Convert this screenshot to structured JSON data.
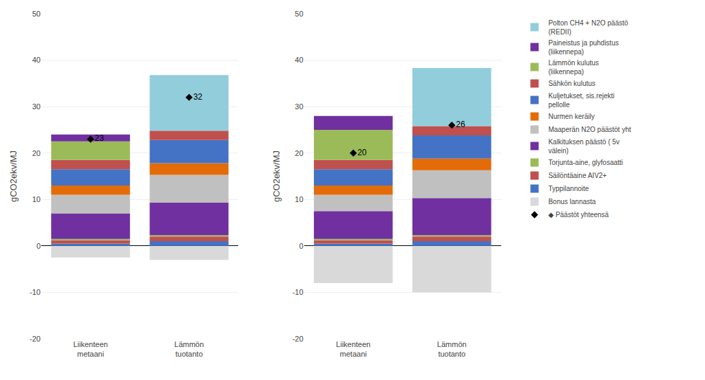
{
  "chart_data": [
    {
      "type": "bar",
      "stacked": true,
      "grid": true,
      "legend": "right",
      "categories": [
        "Liikenteen\nmetaani",
        "Lämmön\ntuotanto"
      ],
      "ylabel": "gCO2ekv/MJ",
      "ylim": [
        -20,
        50
      ],
      "yticks": [
        -20,
        -10,
        0,
        10,
        20,
        30,
        40,
        50
      ],
      "series": [
        {
          "name": "Bonus lannasta",
          "color": "#d9d9d9",
          "values": [
            -2.5,
            -3.0
          ]
        },
        {
          "name": "Typpilannoite",
          "color": "#4472c4",
          "values": [
            0.5,
            1.0
          ]
        },
        {
          "name": "Säilöntäaine AIV2+",
          "color": "#c0504d",
          "values": [
            0.7,
            1.0
          ]
        },
        {
          "name": "Torjunta-aine, glyfosaatti",
          "color": "#9bbb59",
          "values": [
            0.3,
            0.3
          ]
        },
        {
          "name": "Kalkituksen päästö ( 5v\nvälein)",
          "color": "#7030a0",
          "values": [
            5.5,
            7.0
          ]
        },
        {
          "name": "Maaperän N2O päästöt yht",
          "color": "#c0c0c0",
          "values": [
            4.0,
            6.0
          ]
        },
        {
          "name": "Nurmen keräily",
          "color": "#e36c09",
          "values": [
            2.0,
            2.5
          ]
        },
        {
          "name": "Kuljetukset, sis.rejekti\npellolle",
          "color": "#4472c4",
          "values": [
            3.5,
            5.0
          ]
        },
        {
          "name": "Sähkön kulutus",
          "color": "#c0504d",
          "values": [
            2.0,
            2.0
          ]
        },
        {
          "name": "Lämmön kulutus\n(liikennepa)",
          "color": "#9bbb59",
          "values": [
            4.0,
            0.0
          ]
        },
        {
          "name": "Paineistus ja puhdistus\n(liikennepa)",
          "color": "#7030a0",
          "values": [
            1.5,
            0.0
          ]
        },
        {
          "name": "Polton CH4 + N2O päästö\n(REDII)",
          "color": "#92cddc",
          "values": [
            0.0,
            12.0
          ]
        },
        {
          "name": "◆ Päästöt yhteensä",
          "type": "scatter",
          "marker": "diamond",
          "color": "black",
          "data_labels": true,
          "values": [
            23,
            32
          ]
        }
      ]
    },
    {
      "type": "bar",
      "stacked": true,
      "grid": true,
      "categories": [
        "Liikenteen\nmetaani",
        "Lämmön\ntuotanto"
      ],
      "ylabel": "gCO2ekv/MJ",
      "ylim": [
        -20,
        50
      ],
      "yticks": [
        -20,
        -10,
        0,
        10,
        20,
        30,
        40,
        50
      ],
      "series": [
        {
          "name": "Bonus lannasta",
          "color": "#d9d9d9",
          "values": [
            -8.0,
            -10.0
          ]
        },
        {
          "name": "Typpilannoite",
          "color": "#4472c4",
          "values": [
            0.5,
            1.0
          ]
        },
        {
          "name": "Säilöntäaine AIV2+",
          "color": "#c0504d",
          "values": [
            0.7,
            1.0
          ]
        },
        {
          "name": "Torjunta-aine, glyfosaatti",
          "color": "#9bbb59",
          "values": [
            0.3,
            0.3
          ]
        },
        {
          "name": "Kalkituksen päästö ( 5v\nvälein)",
          "color": "#7030a0",
          "values": [
            6.0,
            8.0
          ]
        },
        {
          "name": "Maaperän N2O päästöt yht",
          "color": "#c0c0c0",
          "values": [
            3.5,
            6.0
          ]
        },
        {
          "name": "Nurmen keräily",
          "color": "#e36c09",
          "values": [
            2.0,
            2.5
          ]
        },
        {
          "name": "Kuljetukset, sis.rejekti\npellolle",
          "color": "#4472c4",
          "values": [
            3.5,
            5.0
          ]
        },
        {
          "name": "Sähkön kulutus",
          "color": "#c0504d",
          "values": [
            2.0,
            2.0
          ]
        },
        {
          "name": "Lämmön kulutus\n(liikennepa)",
          "color": "#9bbb59",
          "values": [
            6.5,
            0.0
          ]
        },
        {
          "name": "Paineistus ja puhdistus\n(liikennepa)",
          "color": "#7030a0",
          "values": [
            3.0,
            0.0
          ]
        },
        {
          "name": "Polton CH4 + N2O päästö\n(REDII)",
          "color": "#92cddc",
          "values": [
            0.0,
            12.5
          ]
        },
        {
          "name": "◆ Päästöt yhteensä",
          "type": "scatter",
          "marker": "diamond",
          "color": "black",
          "data_labels": true,
          "values": [
            20,
            26
          ]
        }
      ]
    }
  ]
}
